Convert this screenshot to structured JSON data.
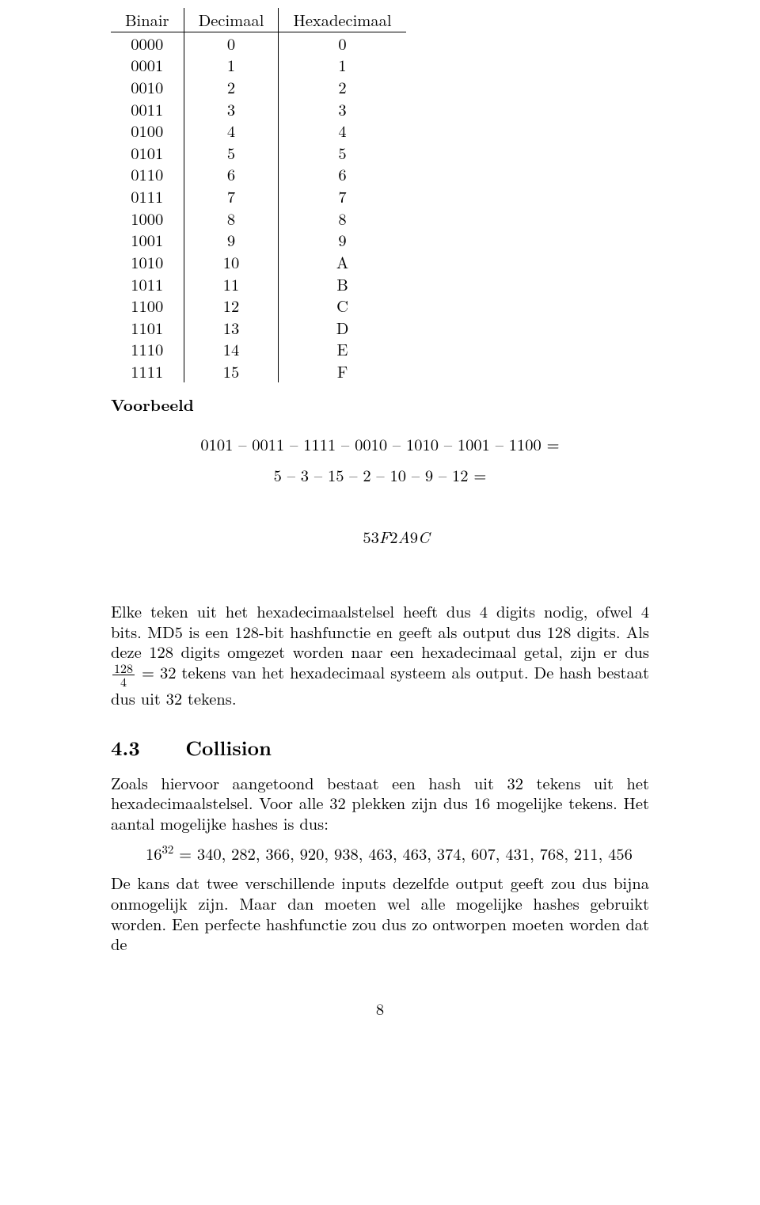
{
  "conversion_table": {
    "headers": [
      "Binair",
      "Decimaal",
      "Hexadecimaal"
    ],
    "rows": [
      [
        "0000",
        "0",
        "0"
      ],
      [
        "0001",
        "1",
        "1"
      ],
      [
        "0010",
        "2",
        "2"
      ],
      [
        "0011",
        "3",
        "3"
      ],
      [
        "0100",
        "4",
        "4"
      ],
      [
        "0101",
        "5",
        "5"
      ],
      [
        "0110",
        "6",
        "6"
      ],
      [
        "0111",
        "7",
        "7"
      ],
      [
        "1000",
        "8",
        "8"
      ],
      [
        "1001",
        "9",
        "9"
      ],
      [
        "1010",
        "10",
        "A"
      ],
      [
        "1011",
        "11",
        "B"
      ],
      [
        "1100",
        "12",
        "C"
      ],
      [
        "1101",
        "13",
        "D"
      ],
      [
        "1110",
        "14",
        "E"
      ],
      [
        "1111",
        "15",
        "F"
      ]
    ]
  },
  "voorbeeld": {
    "heading": "Voorbeeld",
    "line1": "0101 – 0011 – 1111 – 0010 – 1010 – 1001 – 1100 =",
    "line2": "5 – 3 – 15 – 2 – 10 – 9 – 12 =",
    "line3_prefix": "53",
    "line3_italic1": "F",
    "line3_mid": "2",
    "line3_italic2": "A",
    "line3_suffix1": "9",
    "line3_italic3": "C"
  },
  "para1": {
    "text": "Elke teken uit het hexadecimaalstelsel heeft dus 4 digits nodig, ofwel 4 bits. MD5 is een 128-bit hashfunctie en geeft als output dus 128 digits. Als deze 128 digits omgezet worden naar een hexadecimaal getal, zijn er dus ",
    "frac_num": "128",
    "frac_den": "4",
    "after_frac": " = 32 tekens van het hexadecimaal systeem als output. De hash bestaat dus uit 32 tekens."
  },
  "section": {
    "number": "4.3",
    "title": "Collision"
  },
  "para2_a": "Zoals hiervoor aangetoond bestaat een hash uit 32 tekens uit het hexadecimaalstelsel. Voor alle 32 plekken zijn dus 16 mogelijke tekens. Het aantal mogelijke hashes is dus:",
  "equation": {
    "base": "16",
    "exp": "32",
    "rhs": " = 340, 282, 366, 920, 938, 463, 463, 374, 607, 431, 768, 211, 456"
  },
  "para2_b": "De kans dat twee verschillende inputs dezelfde output geeft zou dus bijna onmogelijk zijn. Maar dan moeten wel alle mogelijke hashes gebruikt worden. Een perfecte hashfunctie zou dus zo ontworpen moeten worden dat de",
  "page_number": "8"
}
